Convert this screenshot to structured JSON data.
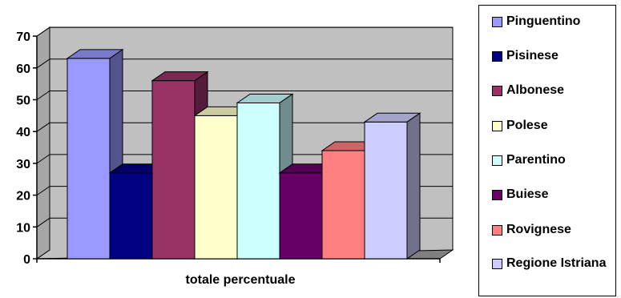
{
  "chart_data": {
    "type": "bar",
    "style": "3d-clustered-column",
    "categories": [
      "totale percentuale"
    ],
    "series": [
      {
        "name": "Pinguentino",
        "values": [
          63
        ],
        "color": "#9999ff"
      },
      {
        "name": "Pisinese",
        "values": [
          27
        ],
        "color": "#000080"
      },
      {
        "name": "Albonese",
        "values": [
          56
        ],
        "color": "#993366"
      },
      {
        "name": "Polese",
        "values": [
          45
        ],
        "color": "#ffffcc"
      },
      {
        "name": "Parentino",
        "values": [
          49
        ],
        "color": "#ccffff"
      },
      {
        "name": "Buiese",
        "values": [
          27
        ],
        "color": "#660066"
      },
      {
        "name": "Rovignese",
        "values": [
          34
        ],
        "color": "#ff8080"
      },
      {
        "name": "Regione Istriana",
        "values": [
          43
        ],
        "color": "#ccccff"
      }
    ],
    "ylim": [
      0,
      70
    ],
    "yticks": [
      "0",
      "10",
      "20",
      "30",
      "40",
      "50",
      "60",
      "70"
    ],
    "grid": true,
    "legend": "right",
    "wall_color": "#c0c0c0",
    "floor_color": "#808080"
  }
}
